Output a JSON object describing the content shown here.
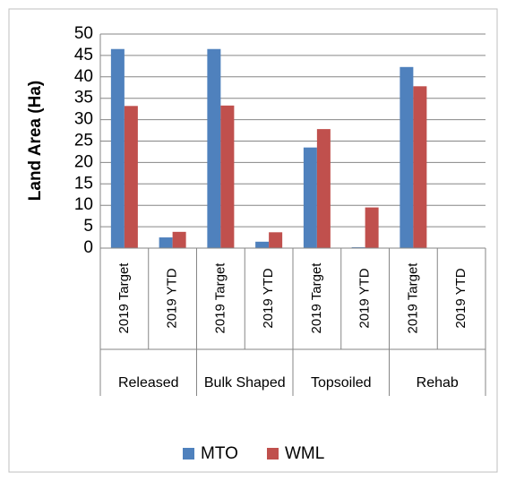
{
  "chart_data": {
    "type": "bar",
    "y_label": "Land Area (Ha)",
    "categories": [
      "2019 Target",
      "2019 YTD",
      "2019 Target",
      "2019 YTD",
      "2019 Target",
      "2019 YTD",
      "2019 Target",
      "2019 YTD"
    ],
    "groups": [
      "Released",
      "Bulk Shaped",
      "Topsoiled",
      "Rehab"
    ],
    "series": [
      {
        "name": "MTO",
        "color": "#4f81bd",
        "values": [
          46.5,
          2.5,
          46.5,
          1.5,
          23.5,
          0.2,
          42.3,
          0
        ]
      },
      {
        "name": "WML",
        "color": "#c0504d",
        "values": [
          33.2,
          3.8,
          33.3,
          3.7,
          27.8,
          9.5,
          37.8,
          0
        ]
      }
    ],
    "ylim": [
      0,
      50
    ],
    "yticks": [
      0,
      5,
      10,
      15,
      20,
      25,
      30,
      35,
      40,
      45,
      50
    ],
    "grid": true,
    "legend": "bottom"
  }
}
